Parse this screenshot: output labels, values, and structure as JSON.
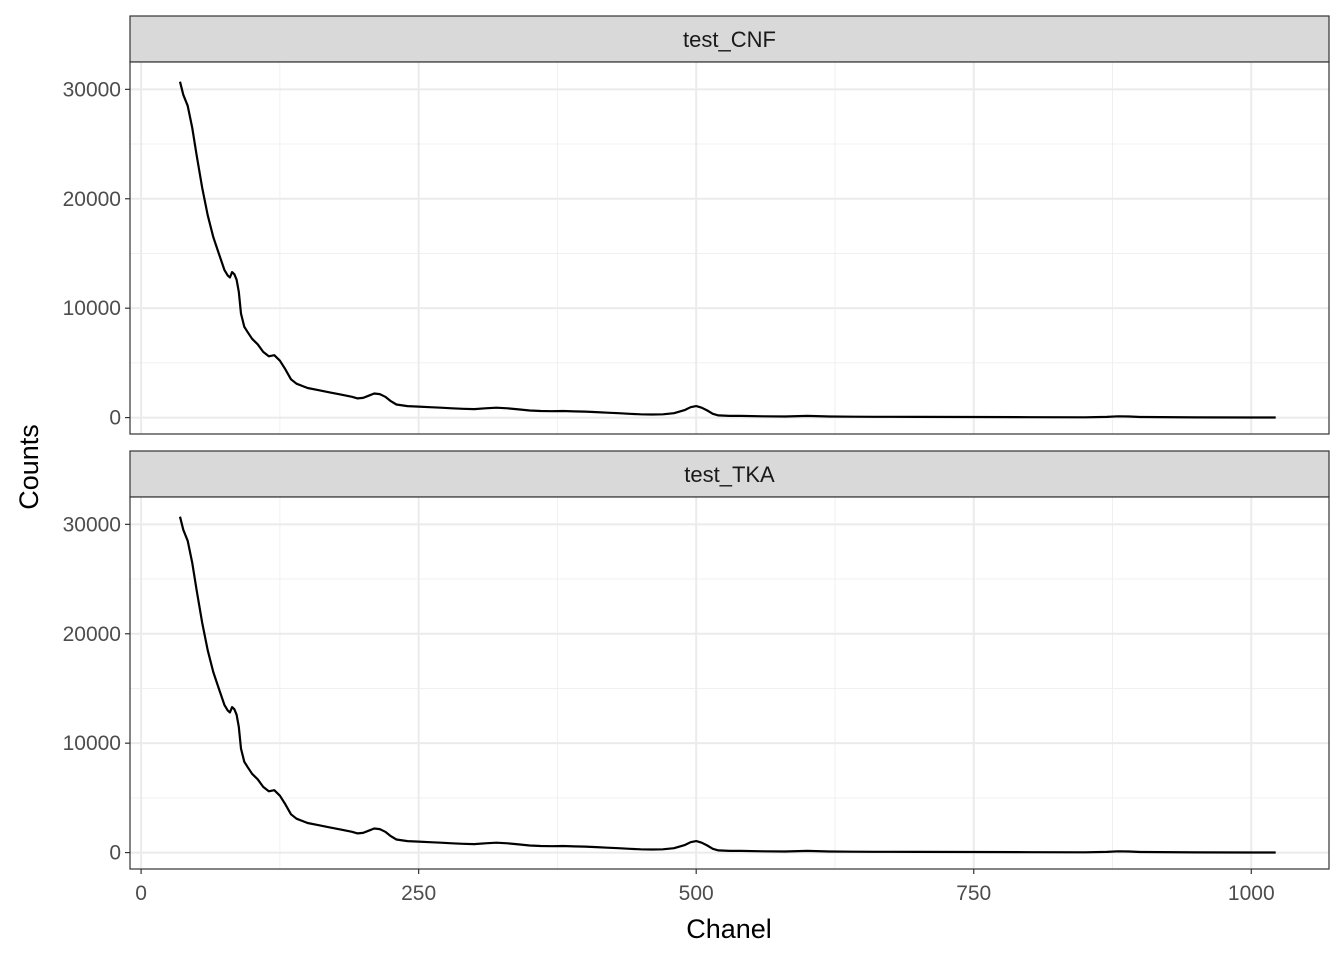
{
  "chart_data": {
    "type": "line",
    "xlabel": "Chanel",
    "ylabel": "Counts",
    "xlim": [
      -10,
      1070
    ],
    "ylim": [
      -1500,
      32500
    ],
    "x_ticks": [
      0,
      250,
      500,
      750,
      1000
    ],
    "x_tick_labels": [
      "0",
      "250",
      "500",
      "750",
      "1000"
    ],
    "y_ticks": [
      0,
      10000,
      20000,
      30000
    ],
    "y_tick_labels": [
      "0",
      "10000",
      "20000",
      "30000"
    ],
    "grid": true,
    "line_color": "#000000",
    "facets": [
      {
        "label": "test_CNF",
        "series": [
          {
            "x": [
              35,
              38,
              42,
              46,
              50,
              55,
              60,
              65,
              70,
              75,
              78,
              80,
              82,
              84,
              86,
              88,
              90,
              93,
              96,
              100,
              105,
              110,
              115,
              120,
              125,
              130,
              135,
              140,
              145,
              150,
              160,
              170,
              180,
              190,
              195,
              200,
              205,
              210,
              215,
              220,
              225,
              230,
              240,
              250,
              260,
              270,
              280,
              290,
              300,
              310,
              320,
              330,
              340,
              350,
              360,
              370,
              380,
              390,
              400,
              410,
              420,
              430,
              440,
              450,
              460,
              470,
              480,
              490,
              495,
              500,
              505,
              510,
              515,
              520,
              530,
              540,
              560,
              580,
              600,
              620,
              640,
              660,
              700,
              750,
              800,
              850,
              870,
              880,
              890,
              900,
              950,
              1000,
              1022
            ],
            "y": [
              30700,
              29500,
              28500,
              26500,
              24000,
              21000,
              18500,
              16500,
              15000,
              13500,
              13000,
              12800,
              13300,
              13100,
              12600,
              11500,
              9500,
              8300,
              7800,
              7200,
              6700,
              6000,
              5600,
              5700,
              5200,
              4400,
              3500,
              3100,
              2900,
              2700,
              2500,
              2300,
              2100,
              1900,
              1750,
              1800,
              2000,
              2200,
              2150,
              1900,
              1500,
              1200,
              1050,
              1000,
              950,
              900,
              850,
              800,
              780,
              850,
              900,
              850,
              750,
              650,
              600,
              580,
              600,
              570,
              550,
              500,
              450,
              400,
              350,
              300,
              280,
              300,
              400,
              700,
              950,
              1050,
              900,
              650,
              350,
              200,
              150,
              150,
              120,
              100,
              150,
              100,
              80,
              70,
              60,
              50,
              40,
              30,
              60,
              120,
              100,
              50,
              20,
              10,
              5
            ]
          }
        ]
      },
      {
        "label": "test_TKA",
        "series": [
          {
            "x": [
              35,
              38,
              42,
              46,
              50,
              55,
              60,
              65,
              70,
              75,
              78,
              80,
              82,
              84,
              86,
              88,
              90,
              93,
              96,
              100,
              105,
              110,
              115,
              120,
              125,
              130,
              135,
              140,
              145,
              150,
              160,
              170,
              180,
              190,
              195,
              200,
              205,
              210,
              215,
              220,
              225,
              230,
              240,
              250,
              260,
              270,
              280,
              290,
              300,
              310,
              320,
              330,
              340,
              350,
              360,
              370,
              380,
              390,
              400,
              410,
              420,
              430,
              440,
              450,
              460,
              470,
              480,
              490,
              495,
              500,
              505,
              510,
              515,
              520,
              530,
              540,
              560,
              580,
              600,
              620,
              640,
              660,
              700,
              750,
              800,
              850,
              870,
              880,
              890,
              900,
              950,
              1000,
              1022
            ],
            "y": [
              30700,
              29500,
              28500,
              26500,
              24000,
              21000,
              18500,
              16500,
              15000,
              13500,
              13000,
              12800,
              13300,
              13100,
              12600,
              11500,
              9500,
              8300,
              7800,
              7200,
              6700,
              6000,
              5600,
              5700,
              5200,
              4400,
              3500,
              3100,
              2900,
              2700,
              2500,
              2300,
              2100,
              1900,
              1750,
              1800,
              2000,
              2200,
              2150,
              1900,
              1500,
              1200,
              1050,
              1000,
              950,
              900,
              850,
              800,
              780,
              850,
              900,
              850,
              750,
              650,
              600,
              580,
              600,
              570,
              550,
              500,
              450,
              400,
              350,
              300,
              280,
              300,
              400,
              700,
              950,
              1050,
              900,
              650,
              350,
              200,
              150,
              150,
              120,
              100,
              150,
              100,
              80,
              70,
              60,
              50,
              40,
              30,
              60,
              120,
              100,
              50,
              20,
              10,
              5
            ]
          }
        ]
      }
    ]
  }
}
